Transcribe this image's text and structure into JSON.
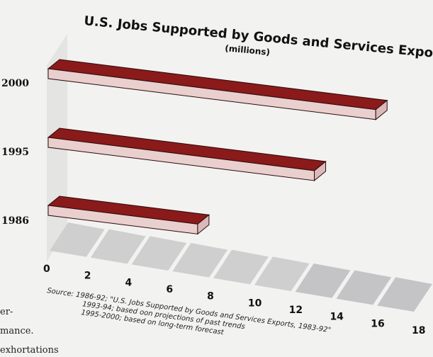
{
  "chart_data": {
    "type": "bar",
    "orientation": "horizontal",
    "title": "U.S. Jobs Supported by Goods and Services Exports",
    "subtitle": "(millions)",
    "categories": [
      "2000",
      "1995",
      "1986"
    ],
    "values": [
      16.0,
      13.0,
      7.3
    ],
    "xlim": [
      0,
      18
    ],
    "xticks": [
      "0",
      "2",
      "4",
      "6",
      "8",
      "10",
      "12",
      "14",
      "16",
      "18"
    ],
    "bar_color": "#8b1a1a",
    "bar_side_color": "#eacfcf",
    "source_lines": [
      "Source: 1986-92; \"U.S. Jobs Supported by Goods and Services Exports, 1983-92\"",
      "1993-94; based oon projections of past trends",
      "1995-2000; based on long-term forecast"
    ]
  },
  "margin_text": [
    "er-",
    "mance.",
    "exhortations"
  ]
}
